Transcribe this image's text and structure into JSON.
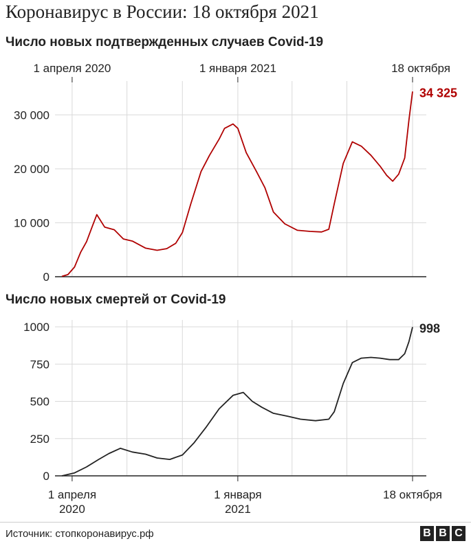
{
  "title": "Коронавирус в России: 18 октября 2021",
  "source": "Источник: стопкоронавирус.рф",
  "logo": [
    "B",
    "B",
    "C"
  ],
  "colors": {
    "cases": "#b00000",
    "deaths": "#222222",
    "grid": "#d9d9d9",
    "axis": "#222222"
  },
  "chart_data": [
    {
      "type": "line",
      "title": "Число новых подтвержденных случаев Covid-19",
      "x_tick_labels": [
        "1 апреля 2020",
        "1 января 2021",
        "18 октября"
      ],
      "y_ticks": [
        "0",
        "10 000",
        "20 000",
        "30 000"
      ],
      "ylim": [
        0,
        35000
      ],
      "end_label": "34 325",
      "color": "#b00000",
      "x": [
        "2020-03-15",
        "2020-03-25",
        "2020-04-05",
        "2020-04-15",
        "2020-04-25",
        "2020-05-05",
        "2020-05-12",
        "2020-05-25",
        "2020-06-10",
        "2020-06-25",
        "2020-07-10",
        "2020-08-01",
        "2020-08-20",
        "2020-09-05",
        "2020-09-20",
        "2020-10-01",
        "2020-10-15",
        "2020-11-01",
        "2020-11-15",
        "2020-12-01",
        "2020-12-10",
        "2020-12-24",
        "2021-01-01",
        "2021-01-15",
        "2021-02-01",
        "2021-02-15",
        "2021-03-01",
        "2021-03-20",
        "2021-04-10",
        "2021-05-01",
        "2021-05-20",
        "2021-06-01",
        "2021-06-10",
        "2021-06-25",
        "2021-07-10",
        "2021-07-25",
        "2021-08-10",
        "2021-08-25",
        "2021-09-05",
        "2021-09-15",
        "2021-09-25",
        "2021-10-05",
        "2021-10-12",
        "2021-10-18"
      ],
      "values": [
        60,
        400,
        1800,
        4500,
        6500,
        9500,
        11500,
        9200,
        8700,
        7000,
        6600,
        5300,
        4900,
        5200,
        6200,
        8200,
        13500,
        19500,
        22500,
        25500,
        27500,
        28300,
        27500,
        23000,
        19500,
        16500,
        12000,
        9800,
        8600,
        8400,
        8300,
        8800,
        13500,
        21000,
        25000,
        24200,
        22500,
        20500,
        18800,
        17700,
        19000,
        22000,
        29000,
        34325
      ]
    },
    {
      "type": "line",
      "title": "Число новых смертей от Covid-19",
      "x_tick_labels": [
        "1 апреля 2020",
        "1 января 2021",
        "18 октября"
      ],
      "y_ticks": [
        "0",
        "250",
        "500",
        "750",
        "1000"
      ],
      "ylim": [
        0,
        1000
      ],
      "end_label": "998",
      "color": "#222222",
      "x": [
        "2020-03-15",
        "2020-04-05",
        "2020-04-25",
        "2020-05-15",
        "2020-06-01",
        "2020-06-20",
        "2020-07-10",
        "2020-08-01",
        "2020-08-20",
        "2020-09-10",
        "2020-10-01",
        "2020-10-20",
        "2020-11-10",
        "2020-12-01",
        "2020-12-24",
        "2021-01-10",
        "2021-01-25",
        "2021-02-10",
        "2021-03-01",
        "2021-03-25",
        "2021-04-15",
        "2021-05-10",
        "2021-06-01",
        "2021-06-10",
        "2021-06-25",
        "2021-07-10",
        "2021-07-25",
        "2021-08-10",
        "2021-08-25",
        "2021-09-10",
        "2021-09-25",
        "2021-10-05",
        "2021-10-12",
        "2021-10-18"
      ],
      "values": [
        0,
        20,
        60,
        110,
        150,
        185,
        160,
        145,
        120,
        110,
        140,
        220,
        330,
        450,
        540,
        560,
        500,
        460,
        420,
        400,
        380,
        370,
        380,
        430,
        620,
        760,
        790,
        795,
        790,
        780,
        780,
        820,
        900,
        998
      ]
    }
  ]
}
